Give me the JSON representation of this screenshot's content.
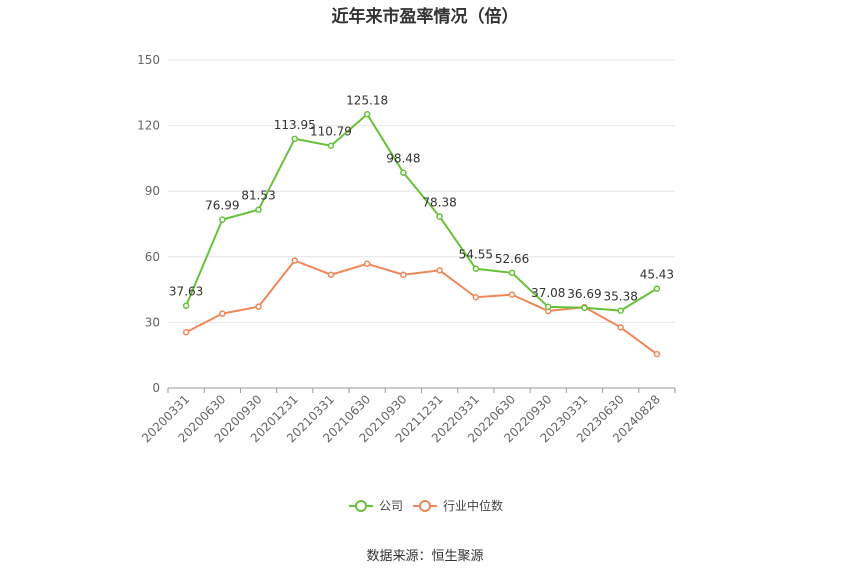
{
  "chart_data": {
    "type": "line",
    "title": "近年来市盈率情况（倍）",
    "categories": [
      "20200331",
      "20200630",
      "20200930",
      "20201231",
      "20210331",
      "20210630",
      "20210930",
      "20211231",
      "20220331",
      "20220630",
      "20220930",
      "20230331",
      "20230630",
      "20240828"
    ],
    "series": [
      {
        "name": "公司",
        "color": "#67c23a",
        "values": [
          37.63,
          76.99,
          81.53,
          113.95,
          110.79,
          125.18,
          98.48,
          78.38,
          54.55,
          52.66,
          37.08,
          36.69,
          35.38,
          45.43
        ],
        "labels": [
          "37.63",
          "76.99",
          "81.53",
          "113.95",
          "110.79",
          "125.18",
          "98.48",
          "78.38",
          "54.55",
          "52.66",
          "37.08",
          "36.69",
          "35.38",
          "45.43"
        ]
      },
      {
        "name": "行业中位数",
        "color": "#f0875a",
        "values": [
          25.5,
          34.0,
          37.2,
          58.3,
          51.8,
          56.8,
          51.8,
          53.8,
          41.5,
          42.7,
          35.2,
          37.0,
          27.7,
          15.5
        ]
      }
    ],
    "y_ticks": [
      "0",
      "30",
      "60",
      "90",
      "120",
      "150"
    ],
    "ylim": [
      0,
      150
    ],
    "grid": true,
    "legend_position": "bottom-center"
  },
  "source": "数据来源：恒生聚源"
}
